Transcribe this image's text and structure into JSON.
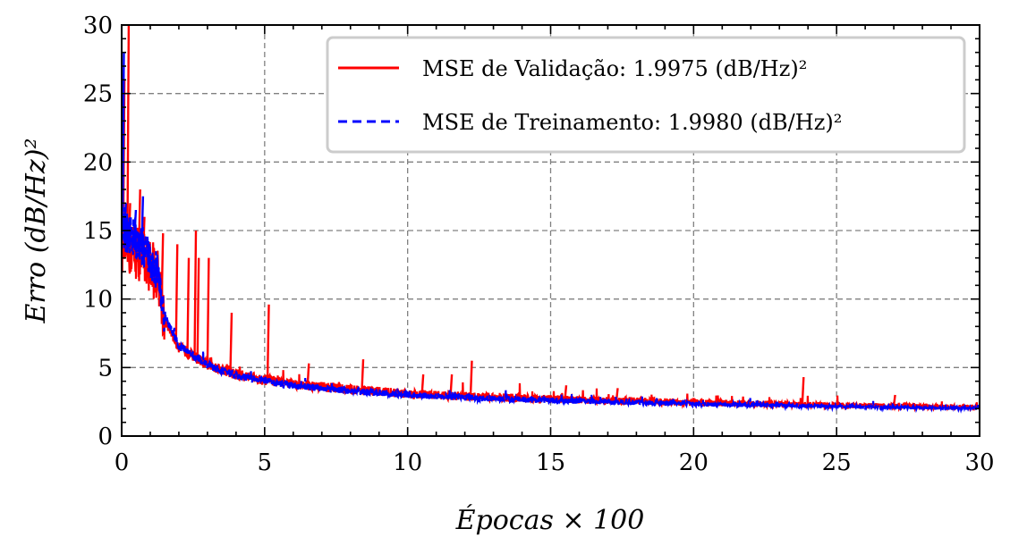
{
  "chart_data": {
    "type": "line",
    "xlabel": "Épocas × 100",
    "ylabel": "Erro (dB/Hz)²",
    "xlim": [
      0,
      30
    ],
    "ylim": [
      0,
      30
    ],
    "x_ticks": [
      0,
      5,
      10,
      15,
      20,
      25,
      30
    ],
    "y_ticks": [
      0,
      5,
      10,
      15,
      20,
      25,
      30
    ],
    "grid": true,
    "legend_position": "top-right",
    "series": [
      {
        "name": "MSE de Validação: 1.9975 (dB/Hz)²",
        "color": "#ff0000",
        "style": "solid",
        "base": [
          [
            0,
            14
          ],
          [
            0.5,
            13.5
          ],
          [
            1.0,
            12.5
          ],
          [
            1.3,
            11.5
          ],
          [
            1.5,
            8.5
          ],
          [
            2,
            6.5
          ],
          [
            3,
            5.2
          ],
          [
            4,
            4.5
          ],
          [
            5,
            4.1
          ],
          [
            6,
            3.8
          ],
          [
            8,
            3.4
          ],
          [
            10,
            3.1
          ],
          [
            12,
            2.9
          ],
          [
            15,
            2.7
          ],
          [
            20,
            2.45
          ],
          [
            25,
            2.25
          ],
          [
            30,
            2.1
          ]
        ],
        "noise": 0.35,
        "spikes": [
          [
            0.05,
            26
          ],
          [
            0.2,
            30
          ],
          [
            0.25,
            17
          ],
          [
            0.6,
            18
          ],
          [
            0.75,
            16
          ],
          [
            1.4,
            14.8
          ],
          [
            1.9,
            14
          ],
          [
            2.3,
            13
          ],
          [
            2.55,
            15
          ],
          [
            2.65,
            13
          ],
          [
            3.0,
            13
          ],
          [
            3.8,
            9
          ],
          [
            5.1,
            9.6
          ],
          [
            6.5,
            5.3
          ],
          [
            8.4,
            5.6
          ],
          [
            10.5,
            4.5
          ],
          [
            11.5,
            4.5
          ],
          [
            12.2,
            5.5
          ],
          [
            15.5,
            3.7
          ],
          [
            17.3,
            3.5
          ],
          [
            23.8,
            4.3
          ],
          [
            27,
            3.0
          ]
        ]
      },
      {
        "name": "MSE de Treinamento: 1.9980 (dB/Hz)²",
        "color": "#0000ff",
        "style": "dashed",
        "base": [
          [
            0,
            15
          ],
          [
            0.5,
            14.5
          ],
          [
            1.0,
            12.8
          ],
          [
            1.3,
            11.8
          ],
          [
            1.5,
            8.8
          ],
          [
            2,
            6.6
          ],
          [
            3,
            5.2
          ],
          [
            4,
            4.4
          ],
          [
            5,
            4.0
          ],
          [
            6,
            3.7
          ],
          [
            8,
            3.3
          ],
          [
            10,
            3.0
          ],
          [
            12,
            2.8
          ],
          [
            15,
            2.6
          ],
          [
            20,
            2.35
          ],
          [
            25,
            2.15
          ],
          [
            30,
            2.0
          ]
        ],
        "noise": 0.25,
        "spikes": [
          [
            0.03,
            28
          ],
          [
            0.1,
            17
          ],
          [
            0.45,
            16.5
          ],
          [
            0.7,
            17.5
          ],
          [
            1.2,
            13
          ]
        ]
      }
    ]
  },
  "colors": {
    "validation": "#ff0000",
    "training": "#0000ff",
    "grid": "#808080",
    "legend_border": "#cccccc"
  }
}
